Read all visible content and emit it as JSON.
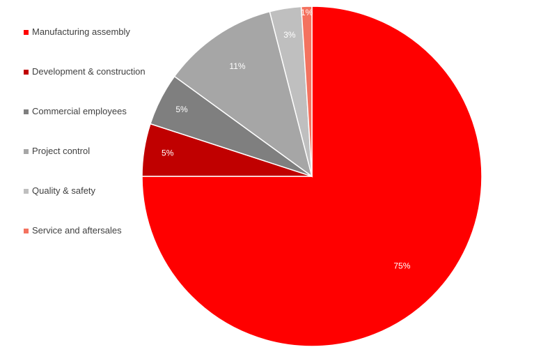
{
  "chart_data": {
    "type": "pie",
    "title": "",
    "legend_position": "left",
    "slices": [
      {
        "label": "Manufacturing assembly",
        "value": 75,
        "display": "75%",
        "color": "#ff0000"
      },
      {
        "label": "Development & construction",
        "value": 5,
        "display": "5%",
        "color": "#c00000"
      },
      {
        "label": "Commercial employees",
        "value": 5,
        "display": "5%",
        "color": "#7f7f7f"
      },
      {
        "label": "Project control",
        "value": 11,
        "display": "11%",
        "color": "#a6a6a6"
      },
      {
        "label": "Quality & safety",
        "value": 3,
        "display": "3%",
        "color": "#bfbfbf"
      },
      {
        "label": "Service and aftersales",
        "value": 1,
        "display": "1%",
        "color": "#f4725f"
      }
    ]
  }
}
